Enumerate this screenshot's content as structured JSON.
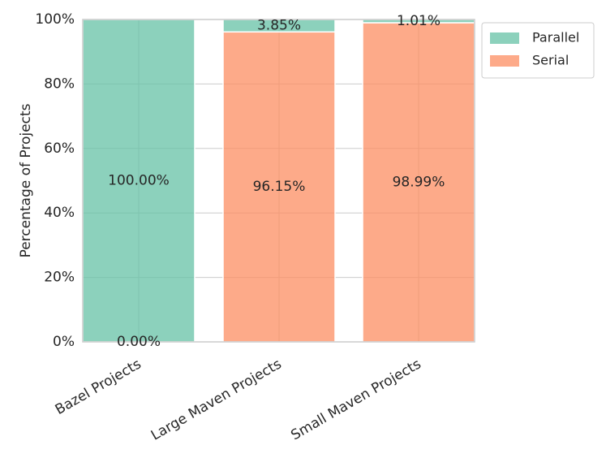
{
  "chart_data": {
    "type": "bar",
    "stacked": true,
    "categories": [
      "Bazel Projects",
      "Large Maven Projects",
      "Small Maven Projects"
    ],
    "series": [
      {
        "name": "Serial",
        "values": [
          0.0,
          96.15,
          98.99
        ],
        "labels": [
          "0.00%",
          "96.15%",
          "98.99%"
        ],
        "color": "#fc8d62"
      },
      {
        "name": "Parallel",
        "values": [
          100.0,
          3.85,
          1.01
        ],
        "labels": [
          "100.00%",
          "3.85%",
          "1.01%"
        ],
        "color": "#66c2a5"
      }
    ],
    "ylabel": "Percentage of Projects",
    "xlabel": "",
    "ylim": [
      0,
      100
    ],
    "yticks": [
      0,
      20,
      40,
      60,
      80,
      100
    ],
    "ytick_labels": [
      "0%",
      "20%",
      "40%",
      "60%",
      "80%",
      "100%"
    ],
    "grid": true,
    "legend": {
      "placement": "outside-top-right",
      "entries": [
        "Parallel",
        "Serial"
      ]
    }
  }
}
